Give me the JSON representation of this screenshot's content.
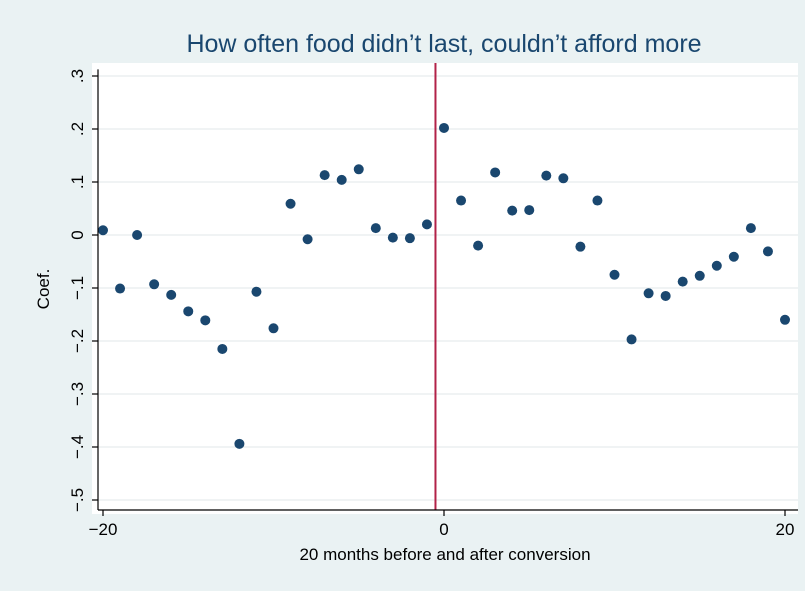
{
  "chart_data": {
    "type": "scatter",
    "title": "How often food didn’t last, couldn’t afford more",
    "xlabel": "20 months before and after conversion",
    "ylabel": "Coef.",
    "xlim": [
      -20.3,
      20.3
    ],
    "ylim": [
      -0.52,
      0.32
    ],
    "x_ticks": [
      -20,
      0,
      20
    ],
    "x_tick_labels": [
      "−20",
      "0",
      "20"
    ],
    "y_ticks": [
      -0.5,
      -0.4,
      -0.3,
      -0.2,
      -0.1,
      0,
      0.1,
      0.2,
      0.3
    ],
    "y_tick_labels": [
      "−.5",
      "−.4",
      "−.3",
      "−.2",
      "−.1",
      "0",
      ".1",
      ".2",
      ".3"
    ],
    "grid": true,
    "reference_line": {
      "x": -0.5,
      "color": "#b22248"
    },
    "marker_color": "#1a476f",
    "background_color": "#eaf2f3",
    "plot_background_color": "#ffffff",
    "points": [
      {
        "x": -20,
        "y": 0.009
      },
      {
        "x": -19,
        "y": -0.101
      },
      {
        "x": -18,
        "y": 0.0
      },
      {
        "x": -17,
        "y": -0.093
      },
      {
        "x": -16,
        "y": -0.113
      },
      {
        "x": -15,
        "y": -0.144
      },
      {
        "x": -14,
        "y": -0.161
      },
      {
        "x": -13,
        "y": -0.215
      },
      {
        "x": -12,
        "y": -0.394
      },
      {
        "x": -11,
        "y": -0.107
      },
      {
        "x": -10,
        "y": -0.176
      },
      {
        "x": -9,
        "y": 0.059
      },
      {
        "x": -8,
        "y": -0.008
      },
      {
        "x": -7,
        "y": 0.113
      },
      {
        "x": -6,
        "y": 0.104
      },
      {
        "x": -5,
        "y": 0.124
      },
      {
        "x": -4,
        "y": 0.013
      },
      {
        "x": -3,
        "y": -0.005
      },
      {
        "x": -2,
        "y": -0.006
      },
      {
        "x": -1,
        "y": 0.02
      },
      {
        "x": 0,
        "y": 0.202
      },
      {
        "x": 1,
        "y": 0.065
      },
      {
        "x": 2,
        "y": -0.02
      },
      {
        "x": 3,
        "y": 0.118
      },
      {
        "x": 4,
        "y": 0.046
      },
      {
        "x": 5,
        "y": 0.047
      },
      {
        "x": 6,
        "y": 0.112
      },
      {
        "x": 7,
        "y": 0.107
      },
      {
        "x": 8,
        "y": -0.022
      },
      {
        "x": 9,
        "y": 0.065
      },
      {
        "x": 10,
        "y": -0.075
      },
      {
        "x": 11,
        "y": -0.197
      },
      {
        "x": 12,
        "y": -0.11
      },
      {
        "x": 13,
        "y": -0.115
      },
      {
        "x": 14,
        "y": -0.088
      },
      {
        "x": 15,
        "y": -0.077
      },
      {
        "x": 16,
        "y": -0.058
      },
      {
        "x": 17,
        "y": -0.041
      },
      {
        "x": 18,
        "y": 0.013
      },
      {
        "x": 19,
        "y": -0.031
      },
      {
        "x": 20,
        "y": -0.16
      }
    ]
  }
}
